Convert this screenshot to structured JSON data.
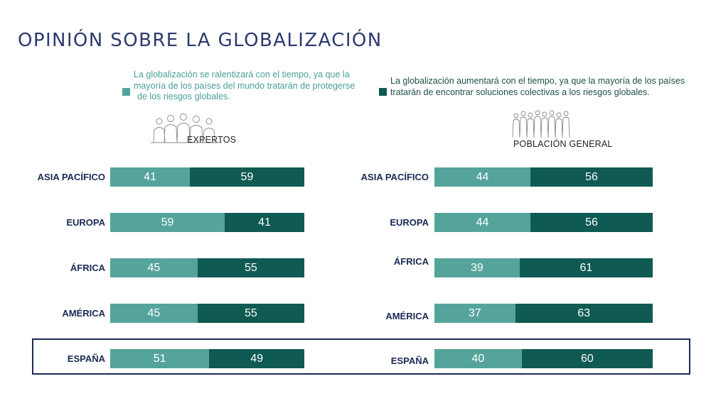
{
  "title": "OPINIÓN SOBRE LA GLOBALIZACIÓN",
  "colors": {
    "light": "#55a49c",
    "dark": "#0f5a52",
    "title": "#2c3a6e",
    "label": "#1a2a55"
  },
  "legend": {
    "light": {
      "lines": [
        "La globalización se ralentizará con el tiempo, ya que la",
        "mayoría de los países del mundo tratarán de protegerse",
        "de los riesgos globales."
      ]
    },
    "dark": {
      "lines": [
        "La globalización aumentará con el tiempo, ya que la mayoría de los países",
        "tratarán de encontrar soluciones colectivas a los riesgos globales."
      ]
    }
  },
  "icons": {
    "left": "people-group-icon",
    "right": "crowd-icon"
  },
  "chart_data": [
    {
      "type": "bar",
      "title": "EXPERTOS",
      "stacked": true,
      "categories": [
        "ASIA PACÍFICO",
        "EUROPA",
        "ÁFRICA",
        "AMÉRICA",
        "ESPAÑA"
      ],
      "series": [
        {
          "values": [
            41,
            59,
            45,
            45,
            51
          ]
        },
        {
          "values": [
            59,
            41,
            55,
            55,
            49
          ]
        }
      ]
    },
    {
      "type": "bar",
      "title": "POBLACIÓN GENERAL",
      "stacked": true,
      "categories": [
        "ASIA PACÍFICO",
        "EUROPA",
        "ÁFRICA",
        "AMÉRICA",
        "ESPAÑA"
      ],
      "series": [
        {
          "values": [
            44,
            44,
            39,
            37,
            40
          ]
        },
        {
          "values": [
            56,
            56,
            61,
            63,
            60
          ]
        }
      ]
    }
  ]
}
